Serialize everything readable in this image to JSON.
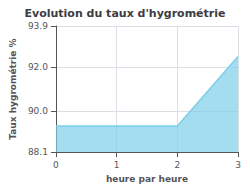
{
  "chart_data": {
    "type": "area",
    "title": "Evolution du taux d'hygrométrie",
    "xlabel": "heure par heure",
    "ylabel": "Taux hygrométrie %",
    "x": [
      0,
      2,
      3
    ],
    "values": [
      89.3,
      89.3,
      92.5
    ],
    "color": "#7dcfea",
    "xlim": [
      0,
      3
    ],
    "xticks": [
      0,
      1,
      2,
      3
    ],
    "ylim": [
      88.1,
      93.9
    ],
    "yticks": [
      88.1,
      {
        "value": 90.0,
        "label": "90.0"
      },
      {
        "value": 92.0,
        "label": "92.0"
      },
      93.9
    ],
    "grid": true
  }
}
